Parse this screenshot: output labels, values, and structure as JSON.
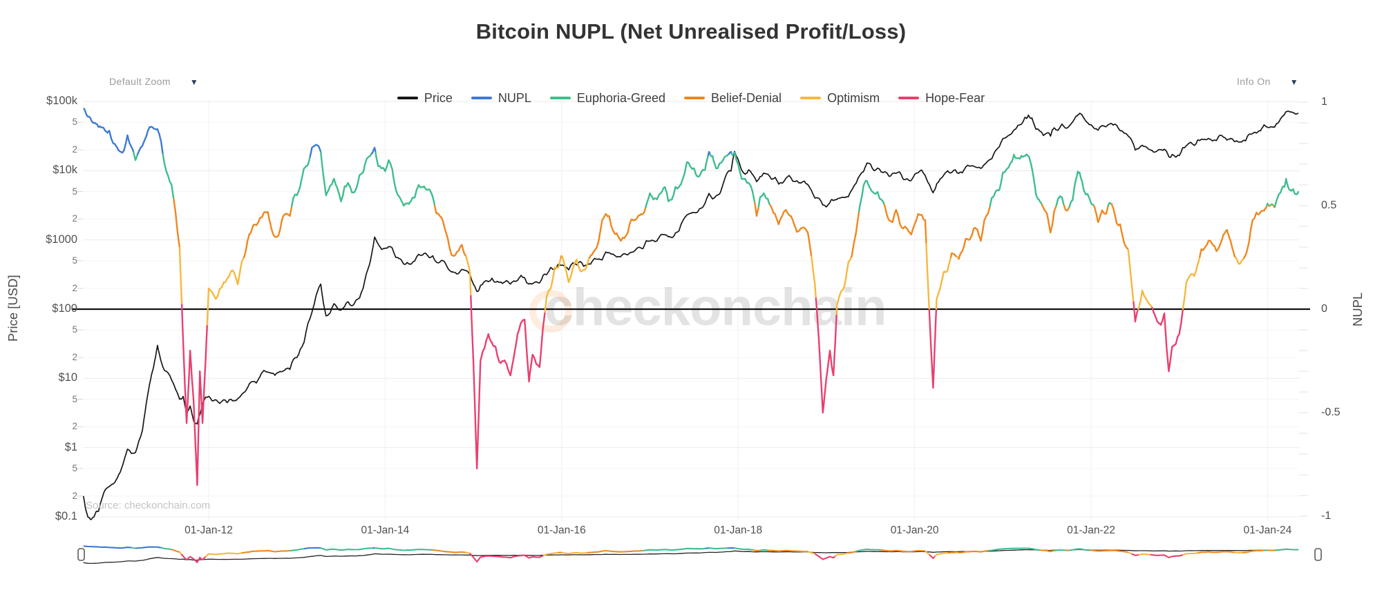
{
  "title": "Bitcoin NUPL (Net Unrealised Profit/Loss)",
  "controls": {
    "default_zoom": "Default Zoom",
    "info_on": "Info On",
    "dropdown_arrow": "▼"
  },
  "legend": {
    "items": [
      {
        "label": "Price",
        "color": "#161616"
      },
      {
        "label": "NUPL",
        "color": "#3e7ad3"
      },
      {
        "label": "Euphoria-Greed",
        "color": "#3fbd8d"
      },
      {
        "label": "Belief-Denial",
        "color": "#ef871e"
      },
      {
        "label": "Optimism",
        "color": "#f5b83e"
      },
      {
        "label": "Hope-Fear",
        "color": "#e8406f"
      }
    ]
  },
  "watermark": {
    "text": "checkonchain"
  },
  "source_note": "Source: checkonchain.com",
  "chart_data": {
    "type": "line",
    "title": "Bitcoin NUPL (Net Unrealised Profit/Loss)",
    "x_range_years": [
      2010.55,
      2024.42
    ],
    "x_ticks": [
      {
        "label": "01-Jan-12",
        "year": 2012
      },
      {
        "label": "01-Jan-14",
        "year": 2014
      },
      {
        "label": "01-Jan-16",
        "year": 2016
      },
      {
        "label": "01-Jan-18",
        "year": 2018
      },
      {
        "label": "01-Jan-20",
        "year": 2020
      },
      {
        "label": "01-Jan-22",
        "year": 2022
      },
      {
        "label": "01-Jan-24",
        "year": 2024
      }
    ],
    "y_left": {
      "title": "Price [USD]",
      "scale": "log",
      "range": [
        0.09,
        115000
      ],
      "ticks": [
        {
          "label": "$100k",
          "value": 100000,
          "major": true
        },
        {
          "label": "5",
          "value": 50000
        },
        {
          "label": "2",
          "value": 20000
        },
        {
          "label": "$10k",
          "value": 10000,
          "major": true
        },
        {
          "label": "5",
          "value": 5000
        },
        {
          "label": "2",
          "value": 2000
        },
        {
          "label": "$1000",
          "value": 1000,
          "major": true
        },
        {
          "label": "5",
          "value": 500
        },
        {
          "label": "2",
          "value": 200
        },
        {
          "label": "$100",
          "value": 100,
          "major": true,
          "zero_line": true
        },
        {
          "label": "5",
          "value": 50
        },
        {
          "label": "2",
          "value": 20
        },
        {
          "label": "$10",
          "value": 10,
          "major": true
        },
        {
          "label": "5",
          "value": 5
        },
        {
          "label": "2",
          "value": 2
        },
        {
          "label": "$1",
          "value": 1,
          "major": true
        },
        {
          "label": "5",
          "value": 0.5
        },
        {
          "label": "2",
          "value": 0.2
        },
        {
          "label": "$0.1",
          "value": 0.1,
          "major": true
        }
      ]
    },
    "y_right": {
      "title": "NUPL",
      "scale": "linear",
      "range": [
        -1.02,
        1.02
      ],
      "minor_step": 0.1,
      "ticks": [
        {
          "label": "1",
          "value": 1
        },
        {
          "label": "0.5",
          "value": 0.5
        },
        {
          "label": "0",
          "value": 0,
          "zero_line": true
        },
        {
          "label": "-0.5",
          "value": -0.5
        },
        {
          "label": "-1",
          "value": -1
        }
      ]
    },
    "zero_line_value": 0,
    "nupl_bands": [
      {
        "name": "NUPL",
        "min": 0.75,
        "color": "#3e7ad3"
      },
      {
        "name": "Euphoria-Greed",
        "min": 0.5,
        "color": "#3fbd8d"
      },
      {
        "name": "Belief-Denial",
        "min": 0.25,
        "color": "#ef871e"
      },
      {
        "name": "Optimism",
        "min": 0,
        "color": "#f5b83e"
      },
      {
        "name": "Hope-Fear",
        "min": -1.1,
        "color": "#e8406f"
      }
    ],
    "series": [
      {
        "name": "Price",
        "axis": "left",
        "color": "#161616",
        "field": 1
      },
      {
        "name": "NUPL",
        "axis": "right",
        "color_by": "nupl_bands",
        "field": 2
      }
    ],
    "points": [
      [
        2010.58,
        0.2,
        0.97
      ],
      [
        2010.63,
        0.1,
        0.93
      ],
      [
        2010.7,
        0.1,
        0.9
      ],
      [
        2010.75,
        0.12,
        0.88
      ],
      [
        2010.83,
        0.25,
        0.86
      ],
      [
        2010.92,
        0.3,
        0.8
      ],
      [
        2011.0,
        0.45,
        0.76
      ],
      [
        2011.08,
        0.95,
        0.84
      ],
      [
        2011.17,
        0.85,
        0.72
      ],
      [
        2011.25,
        1.8,
        0.79
      ],
      [
        2011.33,
        8.2,
        0.88
      ],
      [
        2011.42,
        30,
        0.87
      ],
      [
        2011.5,
        13,
        0.7
      ],
      [
        2011.58,
        9.5,
        0.6
      ],
      [
        2011.67,
        5,
        0.3
      ],
      [
        2011.71,
        5.5,
        -0.15
      ],
      [
        2011.75,
        3.2,
        -0.55
      ],
      [
        2011.79,
        4,
        -0.2
      ],
      [
        2011.83,
        2.4,
        -0.45
      ],
      [
        2011.87,
        2.2,
        -0.85
      ],
      [
        2011.9,
        3,
        -0.3
      ],
      [
        2011.93,
        4.3,
        -0.55
      ],
      [
        2012.0,
        5.5,
        0.1
      ],
      [
        2012.08,
        4.9,
        0.05
      ],
      [
        2012.17,
        4.9,
        0.13
      ],
      [
        2012.25,
        5,
        0.18
      ],
      [
        2012.33,
        5.1,
        0.12
      ],
      [
        2012.42,
        6.6,
        0.28
      ],
      [
        2012.5,
        9,
        0.4
      ],
      [
        2012.58,
        10.5,
        0.44
      ],
      [
        2012.67,
        12.3,
        0.47
      ],
      [
        2012.75,
        11.1,
        0.35
      ],
      [
        2012.83,
        12.5,
        0.43
      ],
      [
        2012.92,
        13.5,
        0.45
      ],
      [
        2013.0,
        20,
        0.55
      ],
      [
        2013.08,
        33,
        0.68
      ],
      [
        2013.17,
        90,
        0.78
      ],
      [
        2013.27,
        230,
        0.76
      ],
      [
        2013.33,
        80,
        0.55
      ],
      [
        2013.42,
        120,
        0.63
      ],
      [
        2013.5,
        97,
        0.52
      ],
      [
        2013.58,
        128,
        0.61
      ],
      [
        2013.67,
        135,
        0.58
      ],
      [
        2013.75,
        200,
        0.66
      ],
      [
        2013.83,
        480,
        0.74
      ],
      [
        2013.88,
        1100,
        0.78
      ],
      [
        2013.96,
        730,
        0.68
      ],
      [
        2014.04,
        800,
        0.72
      ],
      [
        2014.12,
        560,
        0.58
      ],
      [
        2014.21,
        450,
        0.5
      ],
      [
        2014.29,
        445,
        0.52
      ],
      [
        2014.38,
        620,
        0.6
      ],
      [
        2014.46,
        640,
        0.58
      ],
      [
        2014.54,
        590,
        0.54
      ],
      [
        2014.62,
        480,
        0.45
      ],
      [
        2014.71,
        390,
        0.34
      ],
      [
        2014.79,
        340,
        0.26
      ],
      [
        2014.87,
        375,
        0.31
      ],
      [
        2014.96,
        320,
        0.18
      ],
      [
        2015.04,
        180,
        -0.77
      ],
      [
        2015.08,
        220,
        -0.25
      ],
      [
        2015.17,
        250,
        -0.12
      ],
      [
        2015.25,
        245,
        -0.18
      ],
      [
        2015.33,
        235,
        -0.25
      ],
      [
        2015.42,
        230,
        -0.32
      ],
      [
        2015.5,
        260,
        -0.12
      ],
      [
        2015.58,
        285,
        -0.05
      ],
      [
        2015.63,
        230,
        -0.35
      ],
      [
        2015.67,
        235,
        -0.22
      ],
      [
        2015.75,
        240,
        -0.28
      ],
      [
        2015.83,
        315,
        0.06
      ],
      [
        2015.92,
        375,
        0.2
      ],
      [
        2016.0,
        430,
        0.26
      ],
      [
        2016.08,
        370,
        0.13
      ],
      [
        2016.17,
        435,
        0.24
      ],
      [
        2016.25,
        415,
        0.19
      ],
      [
        2016.33,
        450,
        0.26
      ],
      [
        2016.42,
        530,
        0.33
      ],
      [
        2016.5,
        670,
        0.46
      ],
      [
        2016.58,
        625,
        0.38
      ],
      [
        2016.67,
        575,
        0.33
      ],
      [
        2016.75,
        610,
        0.37
      ],
      [
        2016.83,
        700,
        0.43
      ],
      [
        2016.92,
        745,
        0.46
      ],
      [
        2017.0,
        960,
        0.56
      ],
      [
        2017.08,
        965,
        0.53
      ],
      [
        2017.17,
        1190,
        0.59
      ],
      [
        2017.25,
        1080,
        0.53
      ],
      [
        2017.33,
        1350,
        0.59
      ],
      [
        2017.42,
        2300,
        0.71
      ],
      [
        2017.5,
        2480,
        0.68
      ],
      [
        2017.58,
        2875,
        0.66
      ],
      [
        2017.67,
        4700,
        0.76
      ],
      [
        2017.75,
        4340,
        0.68
      ],
      [
        2017.83,
        6450,
        0.72
      ],
      [
        2017.92,
        9900,
        0.76
      ],
      [
        2017.96,
        19000,
        0.76
      ],
      [
        2018.04,
        10200,
        0.63
      ],
      [
        2018.12,
        10300,
        0.61
      ],
      [
        2018.21,
        6930,
        0.45
      ],
      [
        2018.29,
        9240,
        0.56
      ],
      [
        2018.38,
        7500,
        0.49
      ],
      [
        2018.46,
        6400,
        0.41
      ],
      [
        2018.54,
        7730,
        0.48
      ],
      [
        2018.62,
        7030,
        0.43
      ],
      [
        2018.71,
        6620,
        0.39
      ],
      [
        2018.79,
        6300,
        0.37
      ],
      [
        2018.87,
        4020,
        0.12
      ],
      [
        2018.96,
        3200,
        -0.5
      ],
      [
        2019.04,
        3460,
        -0.2
      ],
      [
        2019.08,
        3700,
        -0.32
      ],
      [
        2019.12,
        3850,
        0.02
      ],
      [
        2019.21,
        4100,
        0.12
      ],
      [
        2019.29,
        5320,
        0.26
      ],
      [
        2019.38,
        8560,
        0.5
      ],
      [
        2019.46,
        12900,
        0.62
      ],
      [
        2019.54,
        10000,
        0.56
      ],
      [
        2019.62,
        9600,
        0.53
      ],
      [
        2019.71,
        8300,
        0.43
      ],
      [
        2019.79,
        9150,
        0.48
      ],
      [
        2019.87,
        7550,
        0.39
      ],
      [
        2019.96,
        7190,
        0.36
      ],
      [
        2020.04,
        9350,
        0.46
      ],
      [
        2020.12,
        8550,
        0.43
      ],
      [
        2020.21,
        4800,
        -0.38
      ],
      [
        2020.25,
        6440,
        0.05
      ],
      [
        2020.33,
        8620,
        0.18
      ],
      [
        2020.42,
        9450,
        0.27
      ],
      [
        2020.5,
        9140,
        0.24
      ],
      [
        2020.58,
        11350,
        0.34
      ],
      [
        2020.67,
        11650,
        0.39
      ],
      [
        2020.75,
        10780,
        0.33
      ],
      [
        2020.83,
        13800,
        0.46
      ],
      [
        2020.92,
        19700,
        0.57
      ],
      [
        2021.0,
        29000,
        0.66
      ],
      [
        2021.08,
        33100,
        0.7
      ],
      [
        2021.17,
        45200,
        0.73
      ],
      [
        2021.25,
        58800,
        0.74
      ],
      [
        2021.29,
        63500,
        0.74
      ],
      [
        2021.33,
        57750,
        0.68
      ],
      [
        2021.42,
        37300,
        0.52
      ],
      [
        2021.5,
        35000,
        0.46
      ],
      [
        2021.54,
        31500,
        0.37
      ],
      [
        2021.58,
        41500,
        0.47
      ],
      [
        2021.67,
        47100,
        0.54
      ],
      [
        2021.75,
        43800,
        0.49
      ],
      [
        2021.83,
        61300,
        0.63
      ],
      [
        2021.87,
        67500,
        0.66
      ],
      [
        2021.92,
        57000,
        0.57
      ],
      [
        2022.0,
        46200,
        0.51
      ],
      [
        2022.08,
        38500,
        0.42
      ],
      [
        2022.17,
        43200,
        0.46
      ],
      [
        2022.25,
        45500,
        0.49
      ],
      [
        2022.33,
        37700,
        0.41
      ],
      [
        2022.42,
        31800,
        0.29
      ],
      [
        2022.5,
        19900,
        -0.06
      ],
      [
        2022.58,
        23300,
        0.09
      ],
      [
        2022.67,
        20050,
        0.02
      ],
      [
        2022.75,
        19400,
        -0.06
      ],
      [
        2022.83,
        20500,
        -0.02
      ],
      [
        2022.88,
        16000,
        -0.3
      ],
      [
        2022.92,
        17150,
        -0.18
      ],
      [
        2023.0,
        16550,
        -0.12
      ],
      [
        2023.08,
        23100,
        0.13
      ],
      [
        2023.17,
        23150,
        0.16
      ],
      [
        2023.25,
        28500,
        0.29
      ],
      [
        2023.33,
        29250,
        0.33
      ],
      [
        2023.42,
        27200,
        0.28
      ],
      [
        2023.5,
        30480,
        0.36
      ],
      [
        2023.58,
        29230,
        0.33
      ],
      [
        2023.67,
        25930,
        0.22
      ],
      [
        2023.75,
        26960,
        0.26
      ],
      [
        2023.83,
        34500,
        0.43
      ],
      [
        2023.92,
        37700,
        0.47
      ],
      [
        2024.0,
        42280,
        0.51
      ],
      [
        2024.08,
        42580,
        0.49
      ],
      [
        2024.17,
        61200,
        0.59
      ],
      [
        2024.21,
        71300,
        0.63
      ],
      [
        2024.29,
        69000,
        0.58
      ],
      [
        2024.35,
        67500,
        0.57
      ]
    ]
  }
}
